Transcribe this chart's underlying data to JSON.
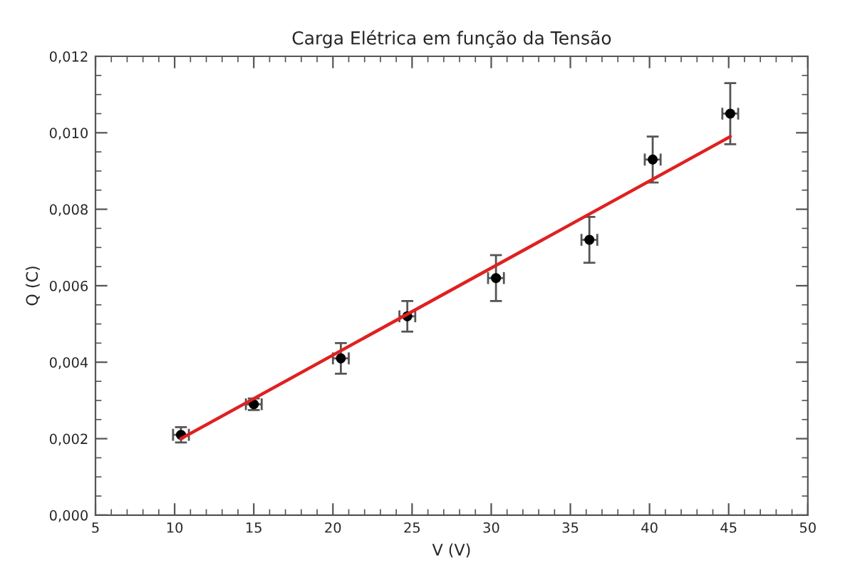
{
  "chart_data": {
    "type": "scatter",
    "title": "Carga Elétrica em função da Tensão",
    "xlabel": "V (V)",
    "ylabel": "Q (C)",
    "xlim": [
      5,
      50
    ],
    "ylim": [
      0,
      0.012
    ],
    "xticks": [
      5,
      10,
      15,
      20,
      25,
      30,
      35,
      40,
      45,
      50
    ],
    "yticks": [
      {
        "value": 0,
        "label": "0,000"
      },
      {
        "value": 0.002,
        "label": "0,002"
      },
      {
        "value": 0.004,
        "label": "0,004"
      },
      {
        "value": 0.006,
        "label": "0,006"
      },
      {
        "value": 0.008,
        "label": "0,008"
      },
      {
        "value": 0.01,
        "label": "0,010"
      },
      {
        "value": 0.012,
        "label": "0,012"
      }
    ],
    "grid": false,
    "marker": "circle",
    "series": [
      {
        "color": "#000000",
        "x": [
          10.4,
          15.0,
          20.5,
          24.7,
          30.3,
          36.2,
          40.2,
          45.1
        ],
        "values": [
          0.0021,
          0.0029,
          0.0041,
          0.0052,
          0.0062,
          0.0072,
          0.0093,
          0.0105
        ],
        "errors": [
          0.0002,
          0.00015,
          0.0004,
          0.0004,
          0.0006,
          0.0006,
          0.0006,
          0.0008
        ],
        "xerrors": [
          0.5,
          0.5,
          0.5,
          0.5,
          0.5,
          0.5,
          0.5,
          0.5
        ]
      },
      {
        "type": "line",
        "color": "#e02020",
        "line_style": "solid",
        "marker": "none",
        "x": [
          10.4,
          45.1
        ],
        "values": [
          0.002,
          0.0099
        ]
      }
    ]
  }
}
